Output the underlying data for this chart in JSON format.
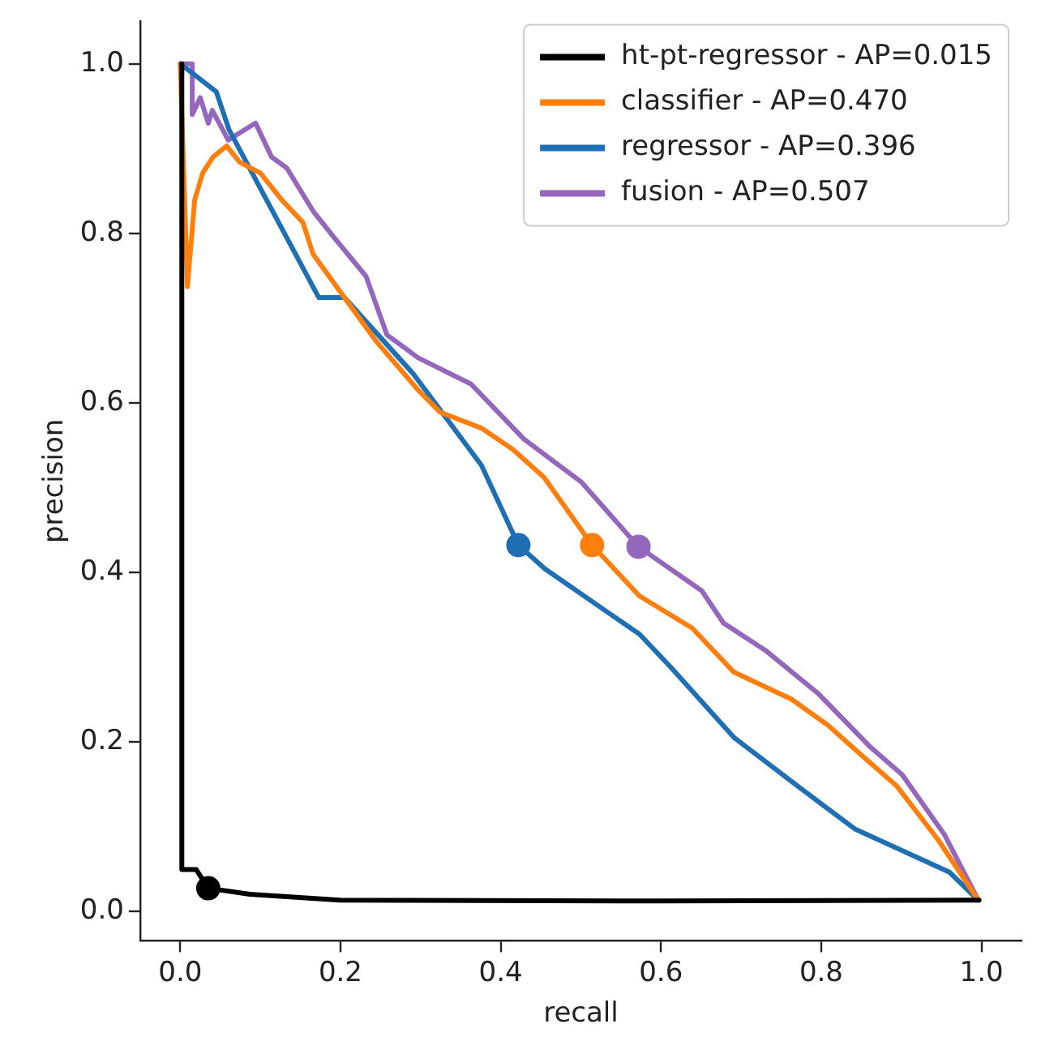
{
  "chart_data": {
    "type": "line",
    "xlabel": "recall",
    "ylabel": "precision",
    "xlim": [
      -0.05,
      1.05
    ],
    "ylim": [
      -0.035,
      1.05
    ],
    "xticks": [
      {
        "value": 0,
        "label": "0.0"
      },
      {
        "value": 0.2,
        "label": "0.2"
      },
      {
        "value": 0.4,
        "label": "0.4"
      },
      {
        "value": 0.6,
        "label": "0.6"
      },
      {
        "value": 0.8,
        "label": "0.8"
      },
      {
        "value": 1,
        "label": "1.0"
      }
    ],
    "yticks": [
      {
        "value": 0,
        "label": "0.0"
      },
      {
        "value": 0.2,
        "label": "0.2"
      },
      {
        "value": 0.4,
        "label": "0.4"
      },
      {
        "value": 0.6,
        "label": "0.6"
      },
      {
        "value": 0.8,
        "label": "0.8"
      },
      {
        "value": 1,
        "label": "1.0"
      }
    ],
    "grid": false,
    "legend": "top right",
    "marker": "none",
    "line_style": "solid",
    "series": [
      {
        "name": "ht-pt-regressor - AP=0.015",
        "color": "#000000",
        "x": [
          0.002,
          0.002,
          0.02,
          0.035,
          0.087,
          0.199,
          0.6,
          0.997
        ],
        "values": [
          1.0,
          0.049,
          0.049,
          0.027,
          0.02,
          0.013,
          0.012,
          0.013
        ]
      },
      {
        "name": "classifier - AP=0.470",
        "color": "#ff7f0e",
        "x": [
          0.0,
          0.009,
          0.018,
          0.028,
          0.041,
          0.058,
          0.074,
          0.1,
          0.127,
          0.153,
          0.166,
          0.205,
          0.245,
          0.297,
          0.324,
          0.376,
          0.415,
          0.454,
          0.514,
          0.573,
          0.639,
          0.691,
          0.763,
          0.809,
          0.848,
          0.894,
          0.946,
          0.996
        ],
        "values": [
          1.0,
          0.737,
          0.839,
          0.871,
          0.89,
          0.903,
          0.884,
          0.871,
          0.839,
          0.813,
          0.775,
          0.724,
          0.672,
          0.615,
          0.589,
          0.57,
          0.545,
          0.512,
          0.432,
          0.372,
          0.334,
          0.282,
          0.25,
          0.219,
          0.186,
          0.148,
          0.084,
          0.013
        ]
      },
      {
        "name": "regressor - AP=0.396",
        "color": "#1f6fb4",
        "x": [
          0.0,
          0.045,
          0.061,
          0.173,
          0.205,
          0.291,
          0.376,
          0.422,
          0.455,
          0.533,
          0.573,
          0.612,
          0.691,
          0.77,
          0.842,
          0.96,
          0.996
        ],
        "values": [
          1.0,
          0.967,
          0.922,
          0.724,
          0.724,
          0.634,
          0.526,
          0.432,
          0.404,
          0.353,
          0.327,
          0.288,
          0.205,
          0.148,
          0.097,
          0.046,
          0.013
        ]
      },
      {
        "name": "fusion - AP=0.507",
        "color": "#9467bd",
        "x": [
          0.0,
          0.015,
          0.015,
          0.025,
          0.035,
          0.04,
          0.06,
          0.094,
          0.114,
          0.133,
          0.166,
          0.192,
          0.232,
          0.258,
          0.297,
          0.363,
          0.429,
          0.501,
          0.572,
          0.651,
          0.678,
          0.73,
          0.796,
          0.862,
          0.901,
          0.954,
          0.996
        ],
        "values": [
          1.0,
          1.0,
          0.94,
          0.96,
          0.93,
          0.945,
          0.91,
          0.93,
          0.89,
          0.877,
          0.826,
          0.795,
          0.749,
          0.68,
          0.653,
          0.622,
          0.557,
          0.506,
          0.43,
          0.378,
          0.34,
          0.308,
          0.257,
          0.193,
          0.161,
          0.09,
          0.013
        ]
      },
      {
        "type": "scatter",
        "marker": "circle",
        "color": "#000000",
        "x": [
          0.035
        ],
        "values": [
          0.027
        ]
      },
      {
        "type": "scatter",
        "marker": "circle",
        "color": "#ff7f0e",
        "x": [
          0.514
        ],
        "values": [
          0.432
        ]
      },
      {
        "type": "scatter",
        "marker": "circle",
        "color": "#1f6fb4",
        "x": [
          0.422
        ],
        "values": [
          0.432
        ]
      },
      {
        "type": "scatter",
        "marker": "circle",
        "color": "#9467bd",
        "x": [
          0.572
        ],
        "values": [
          0.43
        ]
      }
    ]
  }
}
